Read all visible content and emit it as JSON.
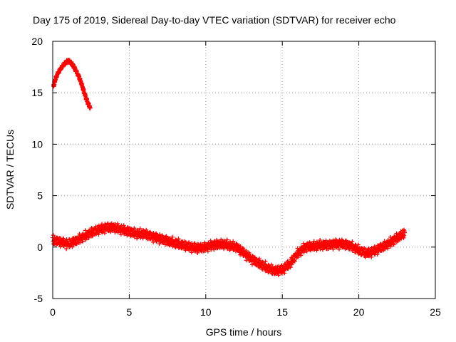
{
  "chart_data": {
    "type": "scatter",
    "title": "Day 175 of 2019, Sidereal Day-to-day VTEC variation (SDTVAR) for receiver echo",
    "xlabel": "GPS time / hours",
    "ylabel": "SDTVAR / TECUs",
    "xlim": [
      0,
      25
    ],
    "ylim": [
      -5,
      20
    ],
    "xticks": [
      0,
      5,
      10,
      15,
      20,
      25
    ],
    "yticks": [
      -5,
      0,
      5,
      10,
      15,
      20
    ],
    "grid": true,
    "series": [
      {
        "name": "SDTVAR",
        "color": "#ff0000",
        "marker": "plus",
        "segments": [
          {
            "x": [
              0.05,
              0.15,
              0.3,
              0.5,
              0.7,
              0.9,
              1.05,
              1.2,
              1.35,
              1.5,
              1.7,
              1.85,
              2.0,
              2.15,
              2.3,
              2.45
            ],
            "y": [
              15.6,
              16.2,
              16.8,
              17.3,
              17.7,
              18.0,
              18.1,
              17.9,
              17.6,
              17.2,
              16.6,
              16.0,
              15.3,
              14.6,
              14.0,
              13.5
            ]
          },
          {
            "x": [
              0.0,
              0.5,
              1.0,
              1.5,
              2.0,
              2.5,
              3.0,
              3.5,
              4.0,
              4.5,
              5.0,
              5.5,
              6.0,
              6.5,
              7.0,
              7.5,
              8.0,
              8.5,
              9.0,
              9.5,
              10.0,
              10.5,
              11.0,
              11.5,
              12.0,
              12.5,
              13.0,
              13.5,
              14.0,
              14.5,
              15.0,
              15.5,
              16.0,
              16.5,
              17.0,
              17.5,
              18.0,
              18.5,
              19.0,
              19.5,
              20.0,
              20.5,
              21.0,
              21.5,
              22.0,
              22.5,
              23.0
            ],
            "y": [
              0.7,
              0.5,
              0.3,
              0.6,
              1.0,
              1.4,
              1.7,
              1.9,
              1.9,
              1.7,
              1.5,
              1.3,
              1.3,
              1.0,
              0.8,
              0.6,
              0.4,
              0.2,
              0.0,
              -0.1,
              0.0,
              0.2,
              0.3,
              0.2,
              0.0,
              -0.6,
              -1.2,
              -1.6,
              -2.0,
              -2.3,
              -2.2,
              -1.6,
              -0.6,
              0.0,
              0.1,
              0.2,
              0.2,
              0.3,
              0.3,
              0.1,
              -0.3,
              -0.6,
              -0.4,
              0.0,
              0.4,
              0.9,
              1.4
            ],
            "band": 0.6
          }
        ]
      }
    ]
  }
}
